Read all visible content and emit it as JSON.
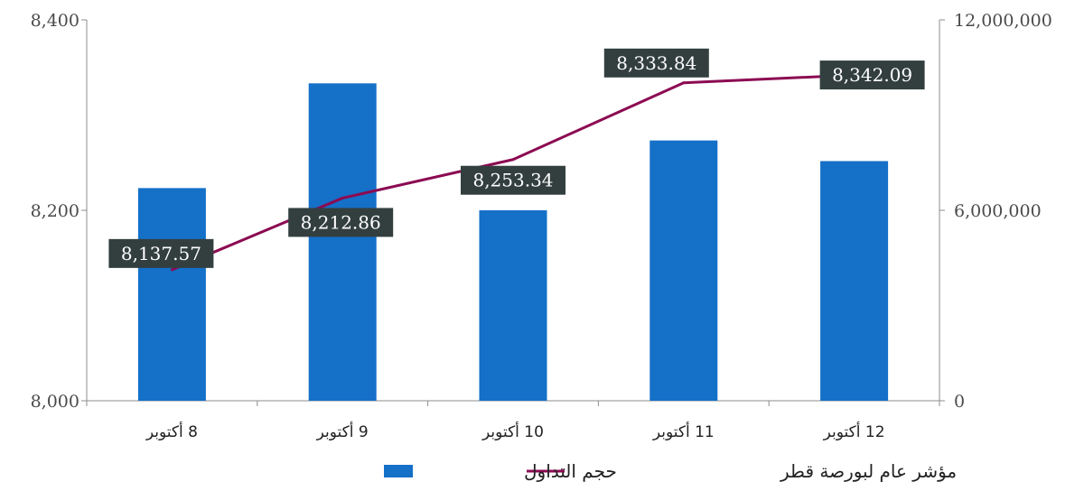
{
  "chart_data": {
    "type": "bar",
    "categories": [
      "8 أكتوبر",
      "9 أكتوبر",
      "10 أكتوبر",
      "11 أكتوبر",
      "12 أكتوبر"
    ],
    "series": [
      {
        "name": "حجم التداول",
        "type": "bar",
        "axis": "right",
        "color": "#1570c8",
        "values": [
          6700000,
          10000000,
          6000000,
          8200000,
          7550000
        ]
      },
      {
        "name": "مؤشر عام لبورصة قطر",
        "type": "line",
        "axis": "left",
        "color": "#8c0a52",
        "values": [
          8137.57,
          8212.86,
          8253.34,
          8333.84,
          8342.09
        ],
        "data_labels": [
          "8,137.57",
          "8,212.86",
          "8,253.34",
          "8,333.84",
          "8,342.09"
        ]
      }
    ],
    "y_left": {
      "ylim": [
        8000,
        8400
      ],
      "ticks": [
        "8,000",
        "8,200",
        "8,400"
      ],
      "tick_values": [
        8000,
        8200,
        8400
      ]
    },
    "y_right": {
      "ylim": [
        0,
        12000000
      ],
      "ticks": [
        "0",
        "6,000,000",
        "12,000,000"
      ],
      "tick_values": [
        0,
        6000000,
        12000000
      ]
    },
    "grid": false,
    "legend_position": "bottom",
    "label_box_color": "#333f3f"
  }
}
